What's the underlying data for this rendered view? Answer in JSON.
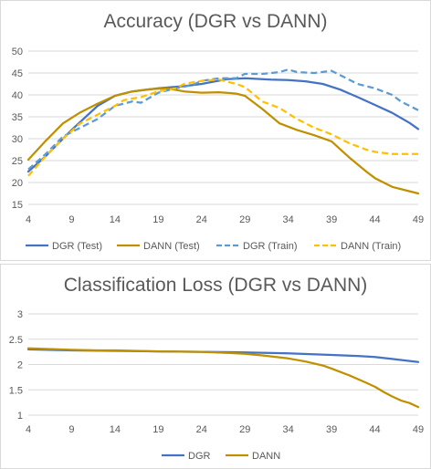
{
  "chart_data": [
    {
      "type": "line",
      "title": "Accuracy (DGR vs DANN)",
      "x": [
        4,
        9,
        14,
        19,
        24,
        29,
        34,
        39,
        44,
        49
      ],
      "xlim": [
        4,
        49
      ],
      "ylim": [
        15,
        50
      ],
      "yticks": [
        15,
        20,
        25,
        30,
        35,
        40,
        45,
        50
      ],
      "grid": true,
      "legend_position": "bottom",
      "series": [
        {
          "name": "DGR (Test)",
          "color": "#4472c4",
          "dash": "solid",
          "points": [
            [
              4,
              22.5
            ],
            [
              6,
              26
            ],
            [
              9,
              32
            ],
            [
              12,
              37.5
            ],
            [
              14,
              39.8
            ],
            [
              16,
              40.8
            ],
            [
              19,
              41.5
            ],
            [
              22,
              42
            ],
            [
              24,
              42.5
            ],
            [
              27,
              43.6
            ],
            [
              29,
              43.8
            ],
            [
              32,
              43.5
            ],
            [
              34,
              43.4
            ],
            [
              36,
              43.1
            ],
            [
              38,
              42.5
            ],
            [
              40,
              41.2
            ],
            [
              42,
              39.5
            ],
            [
              44,
              37.7
            ],
            [
              46,
              35.9
            ],
            [
              48,
              33.6
            ],
            [
              49,
              32.2
            ]
          ]
        },
        {
          "name": "DANN (Test)",
          "color": "#bf9000",
          "dash": "solid",
          "points": [
            [
              4,
              25.2
            ],
            [
              6,
              29.5
            ],
            [
              8,
              33.5
            ],
            [
              10,
              36
            ],
            [
              12,
              38
            ],
            [
              14,
              39.8
            ],
            [
              16,
              40.8
            ],
            [
              18,
              41.3
            ],
            [
              20,
              41.5
            ],
            [
              22,
              40.8
            ],
            [
              24,
              40.5
            ],
            [
              26,
              40.6
            ],
            [
              28,
              40.3
            ],
            [
              29,
              39.8
            ],
            [
              31,
              36.8
            ],
            [
              33,
              33.5
            ],
            [
              35,
              32
            ],
            [
              37,
              30.8
            ],
            [
              39,
              29.4
            ],
            [
              41,
              25.8
            ],
            [
              43,
              22.5
            ],
            [
              44,
              21
            ],
            [
              46,
              19
            ],
            [
              48,
              18
            ],
            [
              49,
              17.5
            ]
          ]
        },
        {
          "name": "DGR (Train)",
          "color": "#5b9bd5",
          "dash": "dashed",
          "points": [
            [
              4,
              23
            ],
            [
              6,
              26.5
            ],
            [
              8,
              30.5
            ],
            [
              10,
              32.5
            ],
            [
              12,
              34.5
            ],
            [
              14,
              37.5
            ],
            [
              16,
              38.5
            ],
            [
              17,
              38.2
            ],
            [
              19,
              40.5
            ],
            [
              21,
              41.5
            ],
            [
              23,
              42.3
            ],
            [
              24,
              43.2
            ],
            [
              26,
              43.8
            ],
            [
              28,
              43.8
            ],
            [
              29,
              44.8
            ],
            [
              31,
              44.8
            ],
            [
              33,
              45.2
            ],
            [
              34,
              45.8
            ],
            [
              35,
              45.2
            ],
            [
              37,
              45
            ],
            [
              39,
              45.5
            ],
            [
              40,
              44.5
            ],
            [
              42,
              42.5
            ],
            [
              44,
              41.5
            ],
            [
              46,
              40
            ],
            [
              47,
              38.5
            ],
            [
              49,
              36.5
            ]
          ]
        },
        {
          "name": "DANN (Train)",
          "color": "#ffc000",
          "dash": "dashed",
          "points": [
            [
              4,
              21.5
            ],
            [
              6,
              26
            ],
            [
              8,
              30
            ],
            [
              10,
              33.5
            ],
            [
              12,
              35.5
            ],
            [
              14,
              37.5
            ],
            [
              15,
              38.8
            ],
            [
              17,
              39.5
            ],
            [
              19,
              40.8
            ],
            [
              21,
              41.5
            ],
            [
              22,
              42.5
            ],
            [
              24,
              43.2
            ],
            [
              26,
              43.5
            ],
            [
              28,
              42.5
            ],
            [
              29,
              41.8
            ],
            [
              31,
              38.5
            ],
            [
              33,
              37
            ],
            [
              35,
              34.5
            ],
            [
              37,
              32.5
            ],
            [
              39,
              31
            ],
            [
              41,
              29
            ],
            [
              43,
              27.5
            ],
            [
              44,
              27
            ],
            [
              46,
              26.5
            ],
            [
              49,
              26.5
            ]
          ]
        }
      ]
    },
    {
      "type": "line",
      "title": "Classification Loss (DGR vs DANN)",
      "x": [
        4,
        9,
        14,
        19,
        24,
        29,
        34,
        39,
        44,
        49
      ],
      "xlim": [
        4,
        49
      ],
      "ylim": [
        1,
        3
      ],
      "yticks": [
        1,
        1.5,
        2,
        2.5,
        3
      ],
      "grid": true,
      "legend_position": "bottom",
      "series": [
        {
          "name": "DGR",
          "color": "#4472c4",
          "dash": "solid",
          "points": [
            [
              4,
              2.3
            ],
            [
              9,
              2.28
            ],
            [
              14,
              2.27
            ],
            [
              19,
              2.26
            ],
            [
              24,
              2.25
            ],
            [
              29,
              2.24
            ],
            [
              34,
              2.22
            ],
            [
              39,
              2.19
            ],
            [
              42,
              2.17
            ],
            [
              44,
              2.15
            ],
            [
              46,
              2.11
            ],
            [
              49,
              2.05
            ]
          ]
        },
        {
          "name": "DANN",
          "color": "#bf9000",
          "dash": "solid",
          "points": [
            [
              4,
              2.32
            ],
            [
              9,
              2.29
            ],
            [
              12,
              2.28
            ],
            [
              14,
              2.28
            ],
            [
              19,
              2.26
            ],
            [
              24,
              2.25
            ],
            [
              27,
              2.23
            ],
            [
              29,
              2.21
            ],
            [
              31,
              2.18
            ],
            [
              34,
              2.12
            ],
            [
              36,
              2.06
            ],
            [
              38,
              1.98
            ],
            [
              39,
              1.92
            ],
            [
              41,
              1.79
            ],
            [
              43,
              1.64
            ],
            [
              44,
              1.56
            ],
            [
              45,
              1.46
            ],
            [
              46,
              1.37
            ],
            [
              47,
              1.29
            ],
            [
              48,
              1.24
            ],
            [
              49,
              1.16
            ]
          ]
        }
      ]
    }
  ]
}
